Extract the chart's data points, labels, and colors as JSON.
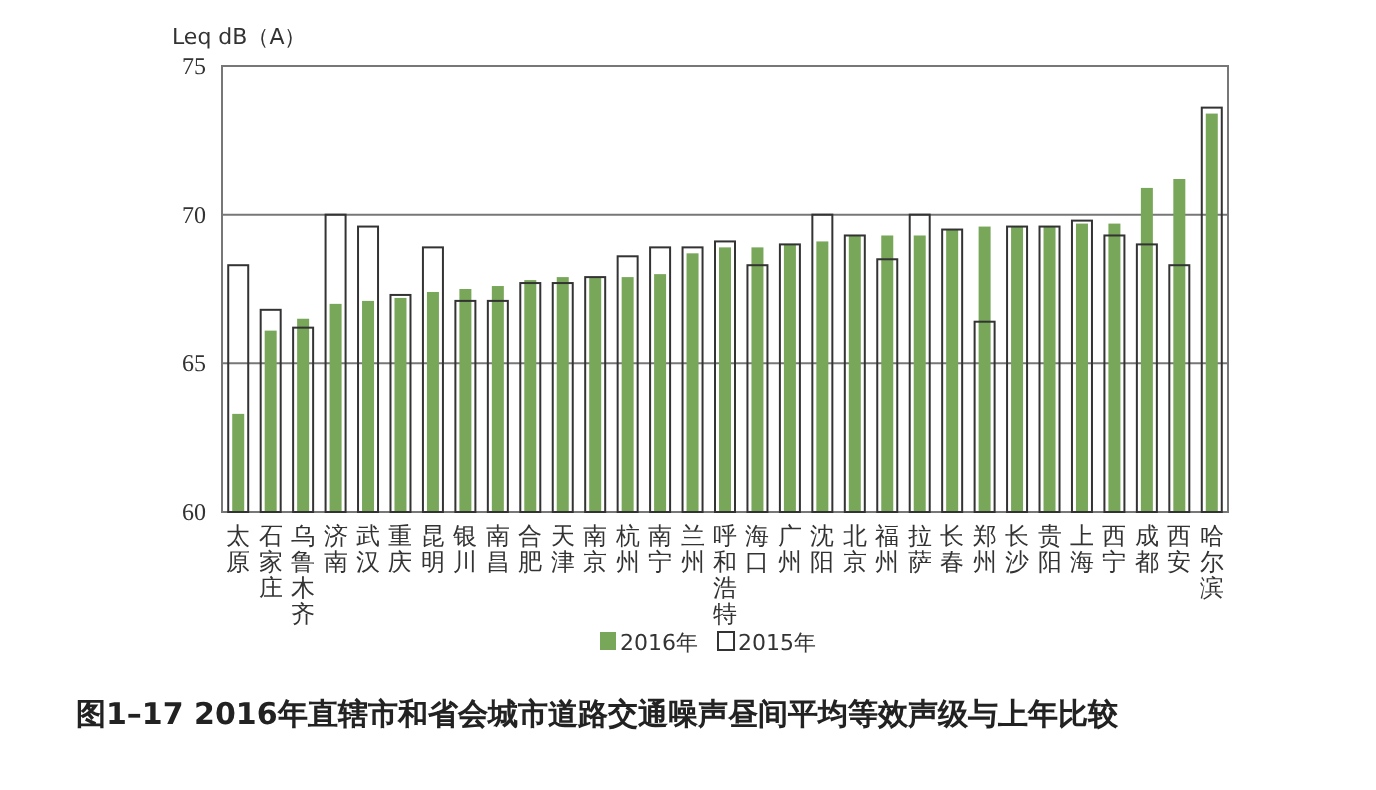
{
  "chart_data": {
    "type": "bar",
    "title": "图1–17  2016年直辖市和省会城市道路交通噪声昼间平均等效声级与上年比较",
    "ylabel": "Leq dB（A）",
    "categories": [
      "太原",
      "石家庄",
      "乌鲁木齐",
      "济南",
      "武汉",
      "重庆",
      "昆明",
      "银川",
      "南昌",
      "合肥",
      "天津",
      "南京",
      "杭州",
      "南宁",
      "兰州",
      "呼和浩特",
      "海口",
      "广州",
      "沈阳",
      "北京",
      "福州",
      "拉萨",
      "长春",
      "郑州",
      "长沙",
      "贵阳",
      "上海",
      "西宁",
      "成都",
      "西安",
      "哈尔滨"
    ],
    "series": [
      {
        "name": "2016年",
        "color": "#78a75a",
        "values": [
          63.3,
          66.1,
          66.5,
          67.0,
          67.1,
          67.2,
          67.4,
          67.5,
          67.6,
          67.8,
          67.9,
          67.9,
          67.9,
          68.0,
          68.7,
          68.9,
          68.9,
          69.0,
          69.1,
          69.3,
          69.3,
          69.3,
          69.5,
          69.6,
          69.6,
          69.6,
          69.7,
          69.7,
          70.9,
          71.2,
          73.4
        ]
      },
      {
        "name": "2015年",
        "color": "#333333",
        "values": [
          68.3,
          66.8,
          66.2,
          70.0,
          69.6,
          67.3,
          68.9,
          67.1,
          67.1,
          67.7,
          67.7,
          67.9,
          68.6,
          68.9,
          68.9,
          69.1,
          68.3,
          69.0,
          70.0,
          69.3,
          68.5,
          70.0,
          69.5,
          66.4,
          69.6,
          69.6,
          69.8,
          69.3,
          69.0,
          68.3,
          73.6
        ]
      }
    ],
    "ylim": [
      60,
      75
    ],
    "yticks": [
      60,
      65,
      70,
      75
    ],
    "grid": "y",
    "legend": "bottom"
  }
}
